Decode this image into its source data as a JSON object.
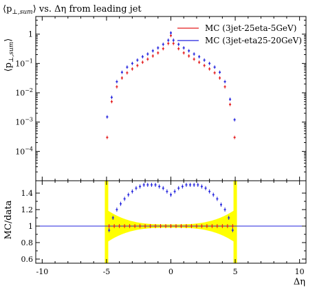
{
  "chart_data": {
    "type": "scatter",
    "title_parts": [
      "⟨p",
      "⊥,sum",
      "⟩ vs. Δη from leading jet"
    ],
    "top_panel": {
      "ylabel_parts": [
        "⟨p",
        "⊥,sum",
        "⟩"
      ],
      "yscale": "log",
      "ylim": [
        1e-05,
        4
      ],
      "ytick_values": [
        0.0001,
        0.001,
        0.01,
        0.1,
        1
      ],
      "ytick_mantissa": [
        "10",
        "10",
        "10",
        "10",
        ""
      ],
      "ytick_exponents": [
        "−4",
        "−3",
        "−2",
        "−1",
        ""
      ],
      "ytick_plain": [
        "",
        "",
        "",
        "",
        "1"
      ],
      "legend_position": "top-right"
    },
    "ratio_panel": {
      "ylabel": "MC/data",
      "ylim": [
        0.55,
        1.55
      ],
      "ytick_values": [
        0.6,
        0.8,
        1.0,
        1.2,
        1.4
      ],
      "ytick_labels": [
        "0.6",
        "0.8",
        "1",
        "1.2",
        "1.4"
      ],
      "reference_line": 1.0,
      "band_color": "#ffff00"
    },
    "xlim": [
      -10.5,
      10.5
    ],
    "xtick_values": [
      -10,
      -5,
      0,
      5,
      10
    ],
    "xtick_labels": [
      "-10",
      "-5",
      "0",
      "5",
      "10"
    ],
    "xlabel": "Δη",
    "series": [
      {
        "name": "MC (3jet-25eta-5GeV)",
        "color": "#e41a1c",
        "x": [
          -4.95,
          -4.6,
          -4.2,
          -3.8,
          -3.4,
          -3.0,
          -2.6,
          -2.2,
          -1.8,
          -1.4,
          -1.0,
          -0.6,
          -0.2,
          0.0,
          0.2,
          0.6,
          1.0,
          1.4,
          1.8,
          2.2,
          2.6,
          3.0,
          3.4,
          3.8,
          4.2,
          4.6,
          4.95
        ],
        "y": [
          0.0003,
          0.005,
          0.016,
          0.032,
          0.048,
          0.065,
          0.085,
          0.11,
          0.14,
          0.18,
          0.23,
          0.32,
          0.48,
          0.9,
          0.48,
          0.32,
          0.23,
          0.18,
          0.14,
          0.11,
          0.085,
          0.065,
          0.048,
          0.032,
          0.016,
          0.004,
          0.0003
        ]
      },
      {
        "name": "MC (3jet-eta25-20GeV)",
        "color": "#2020dd",
        "x": [
          -4.95,
          -4.6,
          -4.2,
          -3.8,
          -3.4,
          -3.0,
          -2.6,
          -2.2,
          -1.8,
          -1.4,
          -1.0,
          -0.6,
          -0.2,
          0.0,
          0.2,
          0.6,
          1.0,
          1.4,
          1.8,
          2.2,
          2.6,
          3.0,
          3.4,
          3.8,
          4.2,
          4.6,
          4.95
        ],
        "y": [
          0.0015,
          0.007,
          0.024,
          0.05,
          0.075,
          0.1,
          0.13,
          0.17,
          0.21,
          0.27,
          0.34,
          0.45,
          0.62,
          1.1,
          0.62,
          0.45,
          0.34,
          0.27,
          0.21,
          0.17,
          0.13,
          0.1,
          0.075,
          0.05,
          0.024,
          0.006,
          0.0012
        ]
      }
    ],
    "ratio_series": [
      {
        "name": "MC (3jet-25eta-5GeV)",
        "color": "#e41a1c",
        "x": [
          -4.8,
          -4.4,
          -4.0,
          -3.6,
          -3.2,
          -2.8,
          -2.4,
          -2.0,
          -1.6,
          -1.2,
          -0.8,
          -0.4,
          0.0,
          0.4,
          0.8,
          1.2,
          1.6,
          2.0,
          2.4,
          2.8,
          3.2,
          3.6,
          4.0,
          4.4,
          4.8
        ],
        "y": [
          1.0,
          1.0,
          1.0,
          1.0,
          1.0,
          1.0,
          1.0,
          1.0,
          1.0,
          1.0,
          1.0,
          1.0,
          1.0,
          1.0,
          1.0,
          1.0,
          1.0,
          1.0,
          1.0,
          1.0,
          1.0,
          1.0,
          1.0,
          1.0,
          1.0
        ]
      },
      {
        "name": "MC (3jet-eta25-20GeV)",
        "color": "#2020dd",
        "x": [
          -4.8,
          -4.5,
          -4.2,
          -3.9,
          -3.6,
          -3.3,
          -3.0,
          -2.7,
          -2.4,
          -2.1,
          -1.8,
          -1.5,
          -1.2,
          -0.9,
          -0.6,
          -0.3,
          0.0,
          0.3,
          0.6,
          0.9,
          1.2,
          1.5,
          1.8,
          2.1,
          2.4,
          2.7,
          3.0,
          3.3,
          3.6,
          3.9,
          4.2,
          4.5,
          4.8
        ],
        "y": [
          0.95,
          1.1,
          1.2,
          1.27,
          1.33,
          1.38,
          1.42,
          1.46,
          1.48,
          1.5,
          1.5,
          1.5,
          1.5,
          1.48,
          1.46,
          1.42,
          1.38,
          1.42,
          1.46,
          1.48,
          1.5,
          1.5,
          1.5,
          1.5,
          1.48,
          1.46,
          1.42,
          1.38,
          1.33,
          1.26,
          1.2,
          1.1,
          0.95
        ]
      }
    ]
  }
}
